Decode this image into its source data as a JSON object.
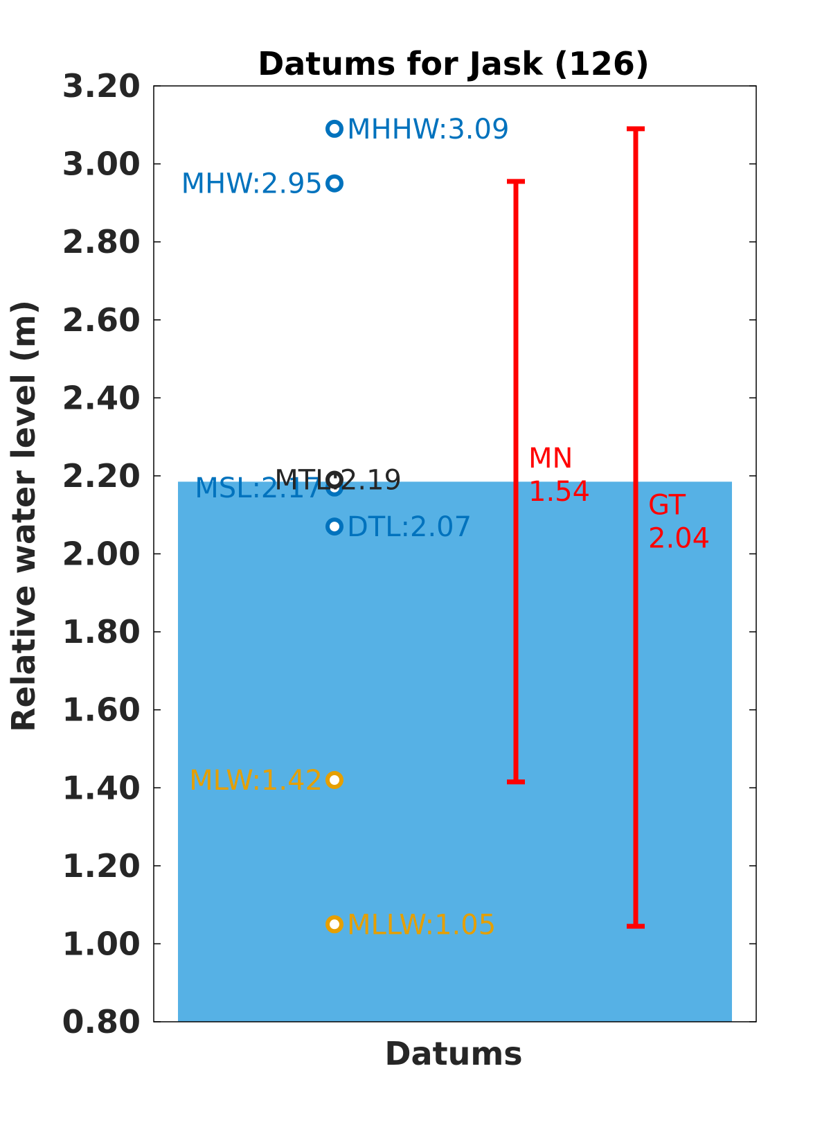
{
  "chart_data": {
    "type": "scatter",
    "title": "Datums for Jask (126)",
    "xlabel": "Datums",
    "ylabel": "Relative water level (m)",
    "ylim": [
      0.8,
      3.2
    ],
    "yticks": [
      "0.80",
      "1.00",
      "1.20",
      "1.40",
      "1.60",
      "1.80",
      "2.00",
      "2.20",
      "2.40",
      "2.60",
      "2.80",
      "3.00",
      "3.20"
    ],
    "grid": false,
    "fill": {
      "from": 0.8,
      "to": 2.185,
      "color": "#56b1e5"
    },
    "datums": [
      {
        "name": "MHHW",
        "value": 3.09,
        "text": "MHHW:3.09",
        "color": "#0072bd",
        "side": "right"
      },
      {
        "name": "MHW",
        "value": 2.95,
        "text": "MHW:2.95",
        "color": "#0072bd",
        "side": "left"
      },
      {
        "name": "MSL",
        "value": 2.17,
        "text": "MSL:2.17",
        "color": "#0072bd",
        "side": "left"
      },
      {
        "name": "MTL",
        "value": 2.19,
        "text": "MTL:2.19",
        "color": "#262626",
        "side": "left"
      },
      {
        "name": "DTL",
        "value": 2.07,
        "text": "DTL:2.07",
        "color": "#0072bd",
        "side": "right"
      },
      {
        "name": "MLW",
        "value": 1.42,
        "text": "MLW:1.42",
        "color": "#e69f00",
        "side": "left"
      },
      {
        "name": "MLLW",
        "value": 1.05,
        "text": "MLLW:1.05",
        "color": "#e69f00",
        "side": "right"
      }
    ],
    "ranges": [
      {
        "name": "MN",
        "from": 1.415,
        "to": 2.955,
        "value": "1.54",
        "color": "#ff0000",
        "label_at": 2.2
      },
      {
        "name": "GT",
        "from": 1.045,
        "to": 3.09,
        "value": "2.04",
        "color": "#ff0000",
        "label_at": 2.08
      }
    ]
  }
}
